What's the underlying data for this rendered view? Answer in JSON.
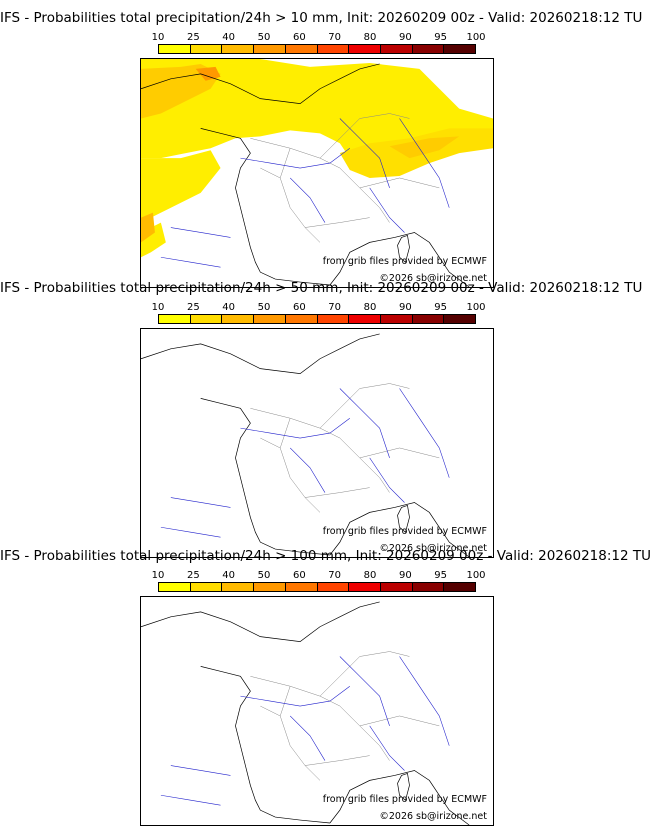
{
  "colorbar": {
    "ticks": [
      "10",
      "25",
      "40",
      "50",
      "60",
      "70",
      "80",
      "90",
      "95",
      "100"
    ],
    "colors": [
      "#ffff00",
      "#ffdd00",
      "#ffbb00",
      "#ff9900",
      "#ff7700",
      "#ff4400",
      "#ee0000",
      "#bb0000",
      "#880000",
      "#550000"
    ]
  },
  "panels": [
    {
      "title": "IFS - Probabilities total precipitation/24h > 10 mm, Init: 20260209 00z - Valid: 20260218:12 TU"
    },
    {
      "title": "IFS - Probabilities total precipitation/24h > 50 mm, Init: 20260209 00z - Valid: 20260218:12 TU"
    },
    {
      "title": "IFS - Probabilities total precipitation/24h > 100 mm, Init: 20260209 00z - Valid: 20260218:12 TU"
    }
  ],
  "credits": {
    "source": "from grib files provided by ECMWF",
    "copyright": "©2026 sb@irizone.net"
  },
  "style": {
    "coast_color": "#000000",
    "river_color": "#2222cc",
    "border_color": "#888888"
  }
}
